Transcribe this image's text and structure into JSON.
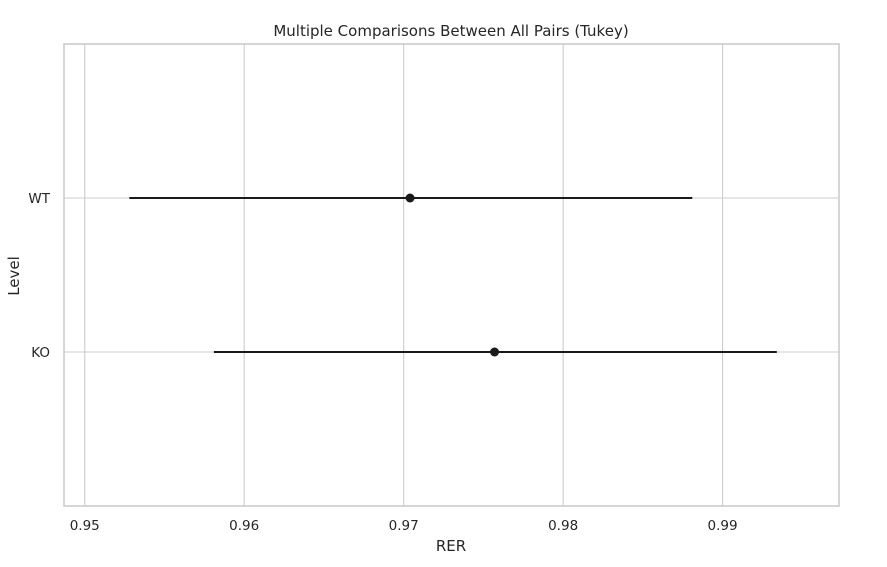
{
  "chart_data": {
    "type": "scatter",
    "title": "Multiple Comparisons Between All Pairs (Tukey)",
    "xlabel": "RER",
    "ylabel": "Level",
    "xlim": [
      0.9487,
      0.9973
    ],
    "x_ticks": [
      0.95,
      0.96,
      0.97,
      0.98,
      0.99
    ],
    "x_tick_labels": [
      "0.95",
      "0.96",
      "0.97",
      "0.98",
      "0.99"
    ],
    "categories": [
      "WT",
      "KO"
    ],
    "series": [
      {
        "points": [
          {
            "level": "WT",
            "mean": 0.9704,
            "lower": 0.9528,
            "upper": 0.9881
          },
          {
            "level": "KO",
            "mean": 0.9757,
            "lower": 0.9581,
            "upper": 0.9934
          }
        ]
      }
    ],
    "grid": true,
    "legend": "none",
    "colors": {
      "marker": "#1a1a1a",
      "grid": "#cccccc",
      "text": "#262626"
    }
  }
}
